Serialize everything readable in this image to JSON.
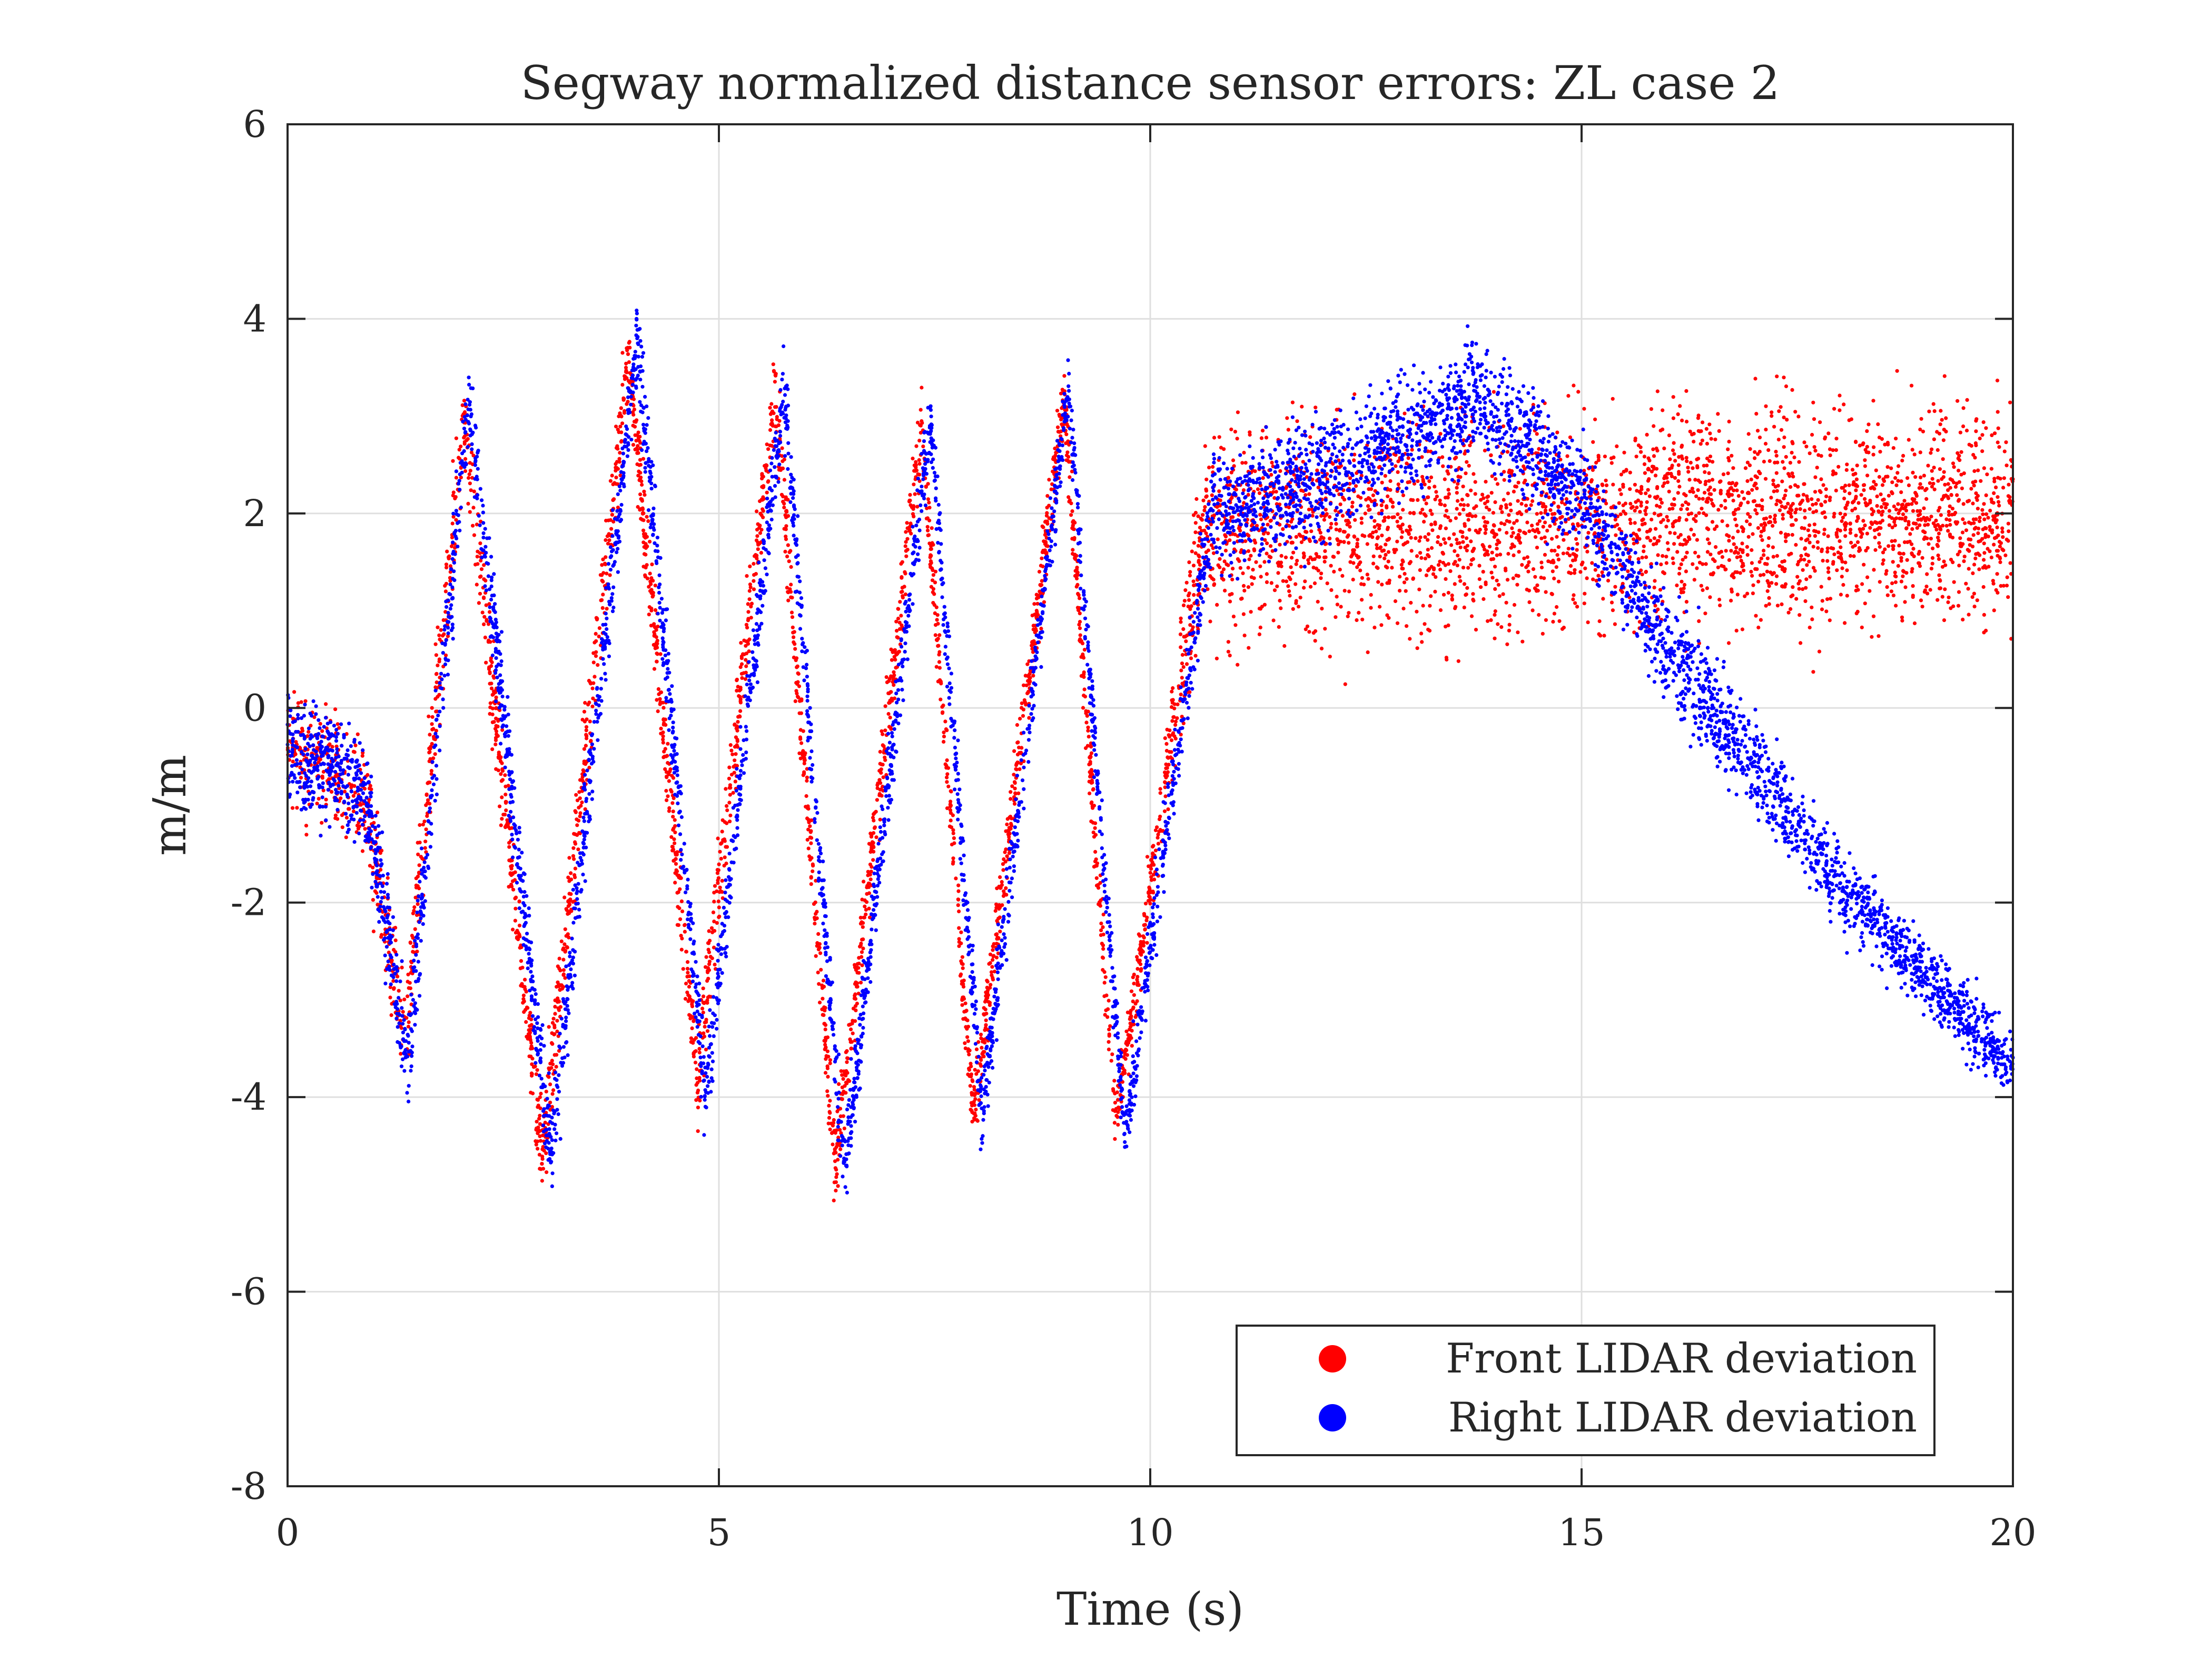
{
  "chart_data": {
    "type": "scatter",
    "title": "Segway normalized distance sensor errors: ZL case 2",
    "xlabel": "Time (s)",
    "ylabel": "m/m",
    "xlim": [
      0,
      20
    ],
    "ylim": [
      -8,
      6
    ],
    "xticks": [
      0,
      5,
      10,
      15,
      20
    ],
    "xtick_labels": [
      "0",
      "5",
      "10",
      "15",
      "20"
    ],
    "yticks": [
      -8,
      -6,
      -4,
      -2,
      0,
      2,
      4,
      6
    ],
    "ytick_labels": [
      "-8",
      "-6",
      "-4",
      "-2",
      "0",
      "2",
      "4",
      "6"
    ],
    "grid": true,
    "legend_position": "bottom-right",
    "series": [
      {
        "name": "Front LIDAR deviation",
        "color": "#ff0000",
        "trend": {
          "x": [
            0,
            0.5,
            0.9,
            1.35,
            2.05,
            2.95,
            3.95,
            4.75,
            5.65,
            6.35,
            7.35,
            7.95,
            9.0,
            9.6,
            10.6,
            12.0,
            14.0,
            16.0,
            18.0,
            20.0
          ],
          "y": [
            -0.4,
            -0.6,
            -0.9,
            -3.4,
            3.0,
            -4.6,
            3.6,
            -3.8,
            3.3,
            -4.7,
            2.9,
            -4.2,
            3.2,
            -4.3,
            1.8,
            1.9,
            1.9,
            2.0,
            2.0,
            2.0
          ]
        },
        "spread": {
          "x": [
            0,
            10,
            10.8,
            20
          ],
          "y": [
            0.5,
            0.3,
            0.9,
            1.0
          ]
        }
      },
      {
        "name": "Right LIDAR deviation",
        "color": "#0000ff",
        "trend": {
          "x": [
            0,
            0.5,
            0.9,
            1.4,
            2.1,
            3.05,
            4.05,
            4.85,
            5.75,
            6.45,
            7.45,
            8.05,
            9.05,
            9.7,
            10.7,
            12.0,
            13.8,
            15.0,
            16.0,
            18.0,
            20.0
          ],
          "y": [
            -0.4,
            -0.6,
            -0.9,
            -3.6,
            3.2,
            -4.6,
            3.8,
            -4.0,
            3.3,
            -4.8,
            3.0,
            -4.2,
            3.3,
            -4.4,
            2.0,
            2.4,
            3.2,
            2.2,
            0.6,
            -1.8,
            -3.7
          ]
        },
        "spread": {
          "x": [
            0,
            10,
            10.8,
            15,
            20
          ],
          "y": [
            0.5,
            0.3,
            0.5,
            0.5,
            0.3
          ]
        }
      }
    ]
  }
}
